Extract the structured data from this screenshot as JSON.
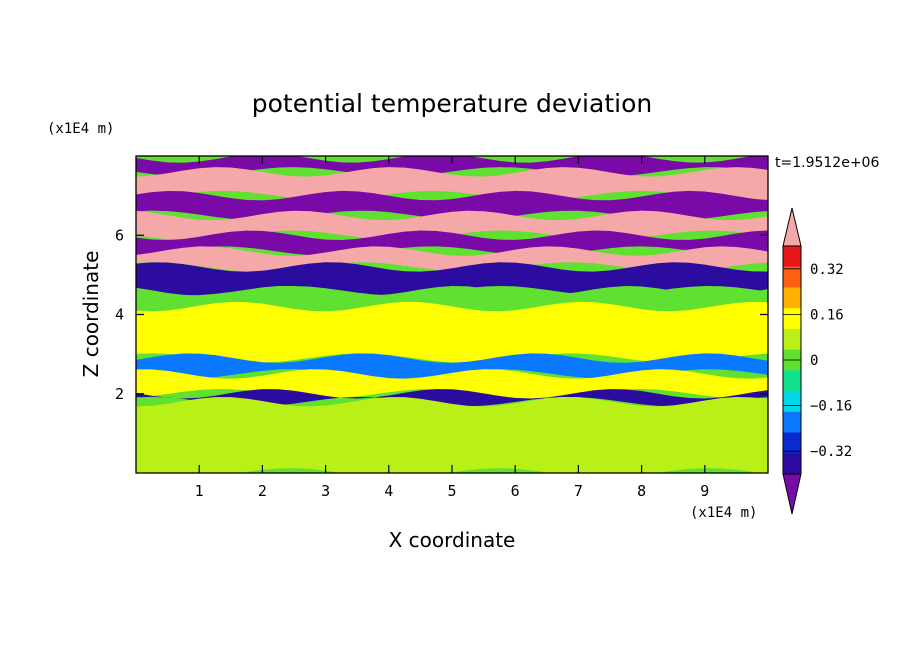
{
  "chart_data": {
    "type": "heatmap",
    "title": "potential temperature deviation",
    "xlabel": "X coordinate",
    "ylabel": "Z coordinate",
    "x_unit": "(x1E4 m)",
    "y_unit": "(x1E4 m)",
    "time_label": "t=1.9512e+06",
    "xlim": [
      0,
      10
    ],
    "ylim": [
      0,
      8
    ],
    "x_ticks": [
      1,
      2,
      3,
      4,
      5,
      6,
      7,
      8,
      9
    ],
    "y_ticks": [
      2,
      4,
      6
    ],
    "x_tick_labels": [
      "1",
      "2",
      "3",
      "4",
      "5",
      "6",
      "7",
      "8",
      "9"
    ],
    "y_tick_labels": [
      "2",
      "4",
      "6"
    ],
    "colorbar": {
      "levels": [
        -0.48,
        -0.4,
        -0.32,
        -0.24,
        -0.16,
        -0.08,
        0,
        0.08,
        0.16,
        0.24,
        0.32,
        0.4,
        0.48
      ],
      "labels": [
        "0.32",
        "0.16",
        "0",
        "−0.16",
        "−0.32"
      ],
      "label_values": [
        0.32,
        0.16,
        0,
        -0.16,
        -0.32
      ],
      "colors": [
        "#7a0aa8",
        "#2c0c9e",
        "#0a2ad0",
        "#0a78ff",
        "#00d8e8",
        "#10e08c",
        "#60e030",
        "#b8f018",
        "#ffff00",
        "#ffb000",
        "#ff6010",
        "#e81818",
        "#f4a8a8"
      ],
      "extend": "both"
    },
    "field_bands": [
      {
        "z": [
          7.6,
          7.95
        ],
        "value": -0.5
      },
      {
        "z": [
          7.0,
          7.6
        ],
        "value": 0.5
      },
      {
        "z": [
          6.5,
          7.0
        ],
        "value": -0.5
      },
      {
        "z": [
          6.0,
          6.5
        ],
        "value": 0.5
      },
      {
        "z": [
          5.6,
          6.0
        ],
        "value": -0.5
      },
      {
        "z": [
          5.2,
          5.6
        ],
        "value": 0.5
      },
      {
        "z": [
          4.6,
          5.2
        ],
        "value": -0.45
      },
      {
        "z": [
          4.2,
          4.6
        ],
        "value": 0.0
      },
      {
        "z": [
          2.9,
          4.2
        ],
        "value": 0.12
      },
      {
        "z": [
          2.5,
          2.9
        ],
        "value": -0.3
      },
      {
        "z": [
          2.0,
          2.5
        ],
        "value": 0.1
      },
      {
        "z": [
          1.8,
          2.0
        ],
        "value": -0.4
      },
      {
        "z": [
          0,
          1.8
        ],
        "value": 0.05
      }
    ]
  }
}
